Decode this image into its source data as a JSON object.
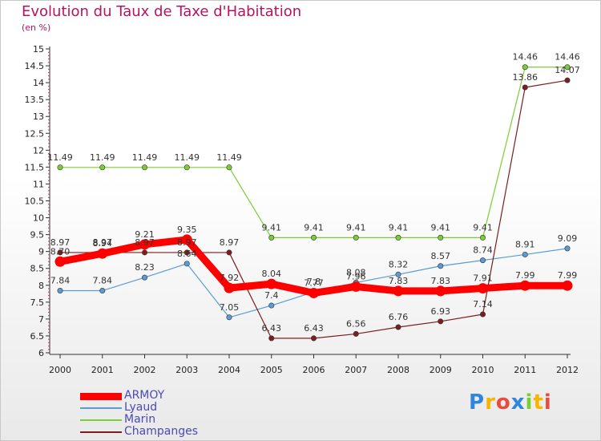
{
  "header": {
    "title": "Evolution du Taux de Taxe d'Habitation",
    "subtitle": "(en %)"
  },
  "logo": {
    "text": "Proxiti"
  },
  "chart_data": {
    "type": "line",
    "title": "Evolution du Taux de Taxe d'Habitation",
    "ylabel": "(en %)",
    "x": [
      "2000",
      "2001",
      "2002",
      "2003",
      "2004",
      "2005",
      "2006",
      "2007",
      "2008",
      "2009",
      "2010",
      "2011",
      "2012"
    ],
    "ylim": [
      6,
      15
    ],
    "yticks": [
      "6",
      "6.5",
      "7",
      "7.5",
      "8",
      "8.5",
      "9",
      "9.5",
      "10",
      "10.5",
      "11",
      "11.5",
      "12",
      "12.5",
      "13",
      "13.5",
      "14",
      "14.5",
      "15"
    ],
    "grid": false,
    "legend_position": "bottom-left",
    "series": [
      {
        "name": "ARMOY",
        "color": "#ff0000",
        "values": [
          8.7,
          8.94,
          9.21,
          9.35,
          7.92,
          8.04,
          7.77,
          7.96,
          7.83,
          7.83,
          7.91,
          7.99,
          7.99
        ],
        "labels": [
          "8.70",
          "8.94",
          "9.21",
          "9.35",
          "7.92",
          "8.04",
          "7.77",
          "7.96",
          "7.83",
          "7.83",
          "7.91",
          "7.99",
          "7.99"
        ]
      },
      {
        "name": "Lyaud",
        "color": "#5b9bd5",
        "values": [
          7.84,
          7.84,
          8.23,
          8.64,
          7.05,
          7.4,
          7.8,
          8.08,
          8.32,
          8.57,
          8.74,
          8.91,
          9.09
        ],
        "labels": [
          "7.84",
          "7.84",
          "8.23",
          "8.64",
          "7.05",
          "7.4",
          "7.8",
          "8.08",
          "8.32",
          "8.57",
          "8.74",
          "8.91",
          "9.09"
        ]
      },
      {
        "name": "Marin",
        "color": "#7ccd32",
        "values": [
          11.49,
          11.49,
          11.49,
          11.49,
          11.49,
          9.41,
          9.41,
          9.41,
          9.41,
          9.41,
          9.41,
          14.46,
          14.46
        ],
        "labels": [
          "11.49",
          "11.49",
          "11.49",
          "11.49",
          "11.49",
          "9.41",
          "9.41",
          "9.41",
          "9.41",
          "9.41",
          "9.41",
          "14.46",
          "14.46"
        ]
      },
      {
        "name": "Champanges",
        "color": "#7a1e1e",
        "values": [
          8.97,
          8.97,
          8.97,
          8.97,
          8.97,
          6.43,
          6.43,
          6.56,
          6.76,
          6.93,
          7.14,
          13.86,
          14.07
        ],
        "labels": [
          "8.97",
          "8.97",
          "8.97",
          "8.97",
          "8.97",
          "6.43",
          "6.43",
          "6.56",
          "6.76",
          "6.93",
          "7.14",
          "13.86",
          "14.07"
        ]
      }
    ]
  }
}
